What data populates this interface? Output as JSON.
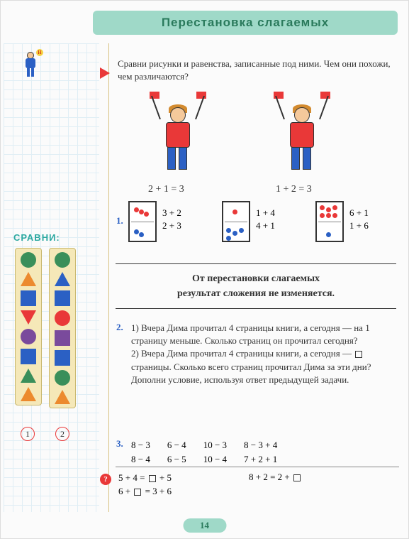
{
  "title": "Перестановка слагаемых",
  "intro": "Сравни рисунки и равенства, записанные под ними. Чем они похожи, чем различаются?",
  "eq_boy_left": "2 + 1 = 3",
  "eq_boy_right": "1 + 2 = 3",
  "ex1": {
    "num": "1.",
    "dominoes": [
      {
        "top_red": 3,
        "bot_blue": 2,
        "eq1": "3 + 2",
        "eq2": "2 + 3"
      },
      {
        "top_red": 1,
        "bot_blue": 4,
        "eq1": "1 + 4",
        "eq2": "4 + 1"
      },
      {
        "top_red": 6,
        "bot_blue": 1,
        "eq1": "6 + 1",
        "eq2": "1 + 6"
      }
    ]
  },
  "rule_l1": "От перестановки слагаемых",
  "rule_l2": "результат сложения не изменяется.",
  "ex2": {
    "num": "2.",
    "text": "1) Вчера Дима прочитал 4 страницы книги, а сегодня — на 1 страницу меньше. Сколько страниц он прочитал сегодня?\n2) Вчера Дима прочитал 4 страницы книги, а сегодня — □ страницы. Сколько всего страниц прочитал Дима за эти дни? Дополни условие, используя ответ предыдущей задачи."
  },
  "ex3": {
    "num": "3.",
    "cols": [
      [
        "8 − 3",
        "8 − 4"
      ],
      [
        "6 − 4",
        "6 − 5"
      ],
      [
        "10 − 3",
        "10 − 4"
      ],
      [
        "8 − 3 + 4",
        "7 + 2 + 1"
      ]
    ]
  },
  "final": {
    "l1": "5 + 4 = □ + 5",
    "l2": "6 + □ = 3 + 6",
    "r1": "8 + 2 = 2 + □"
  },
  "sidebar": {
    "label": "СРАВНИ:",
    "col1_num": "1",
    "col2_num": "2",
    "col1": [
      {
        "shape": "circle",
        "color": "green"
      },
      {
        "shape": "tri-up",
        "color": "orange"
      },
      {
        "shape": "sq",
        "color": "blue"
      },
      {
        "shape": "tri-down",
        "color": "red"
      },
      {
        "shape": "circle",
        "color": "purple"
      },
      {
        "shape": "sq",
        "color": "blue"
      },
      {
        "shape": "tri-up",
        "color": "green"
      },
      {
        "shape": "tri-up",
        "color": "orange"
      }
    ],
    "col2": [
      {
        "shape": "circle",
        "color": "green"
      },
      {
        "shape": "tri-up",
        "color": "blue"
      },
      {
        "shape": "sq",
        "color": "blue"
      },
      {
        "shape": "circle",
        "color": "red"
      },
      {
        "shape": "sq",
        "color": "purple"
      },
      {
        "shape": "sq",
        "color": "blue"
      },
      {
        "shape": "circle",
        "color": "green"
      },
      {
        "shape": "tri-up",
        "color": "orange"
      }
    ]
  },
  "page_num": "14",
  "colors": {
    "title_bg": "#9fd9c8",
    "title_fg": "#2a7a5c",
    "accent_blue": "#2b60c4",
    "accent_red": "#e93838",
    "sidebar_shape_bg": "#f5e8b8"
  },
  "boy_flag_letter": "Н",
  "qmark": "?"
}
